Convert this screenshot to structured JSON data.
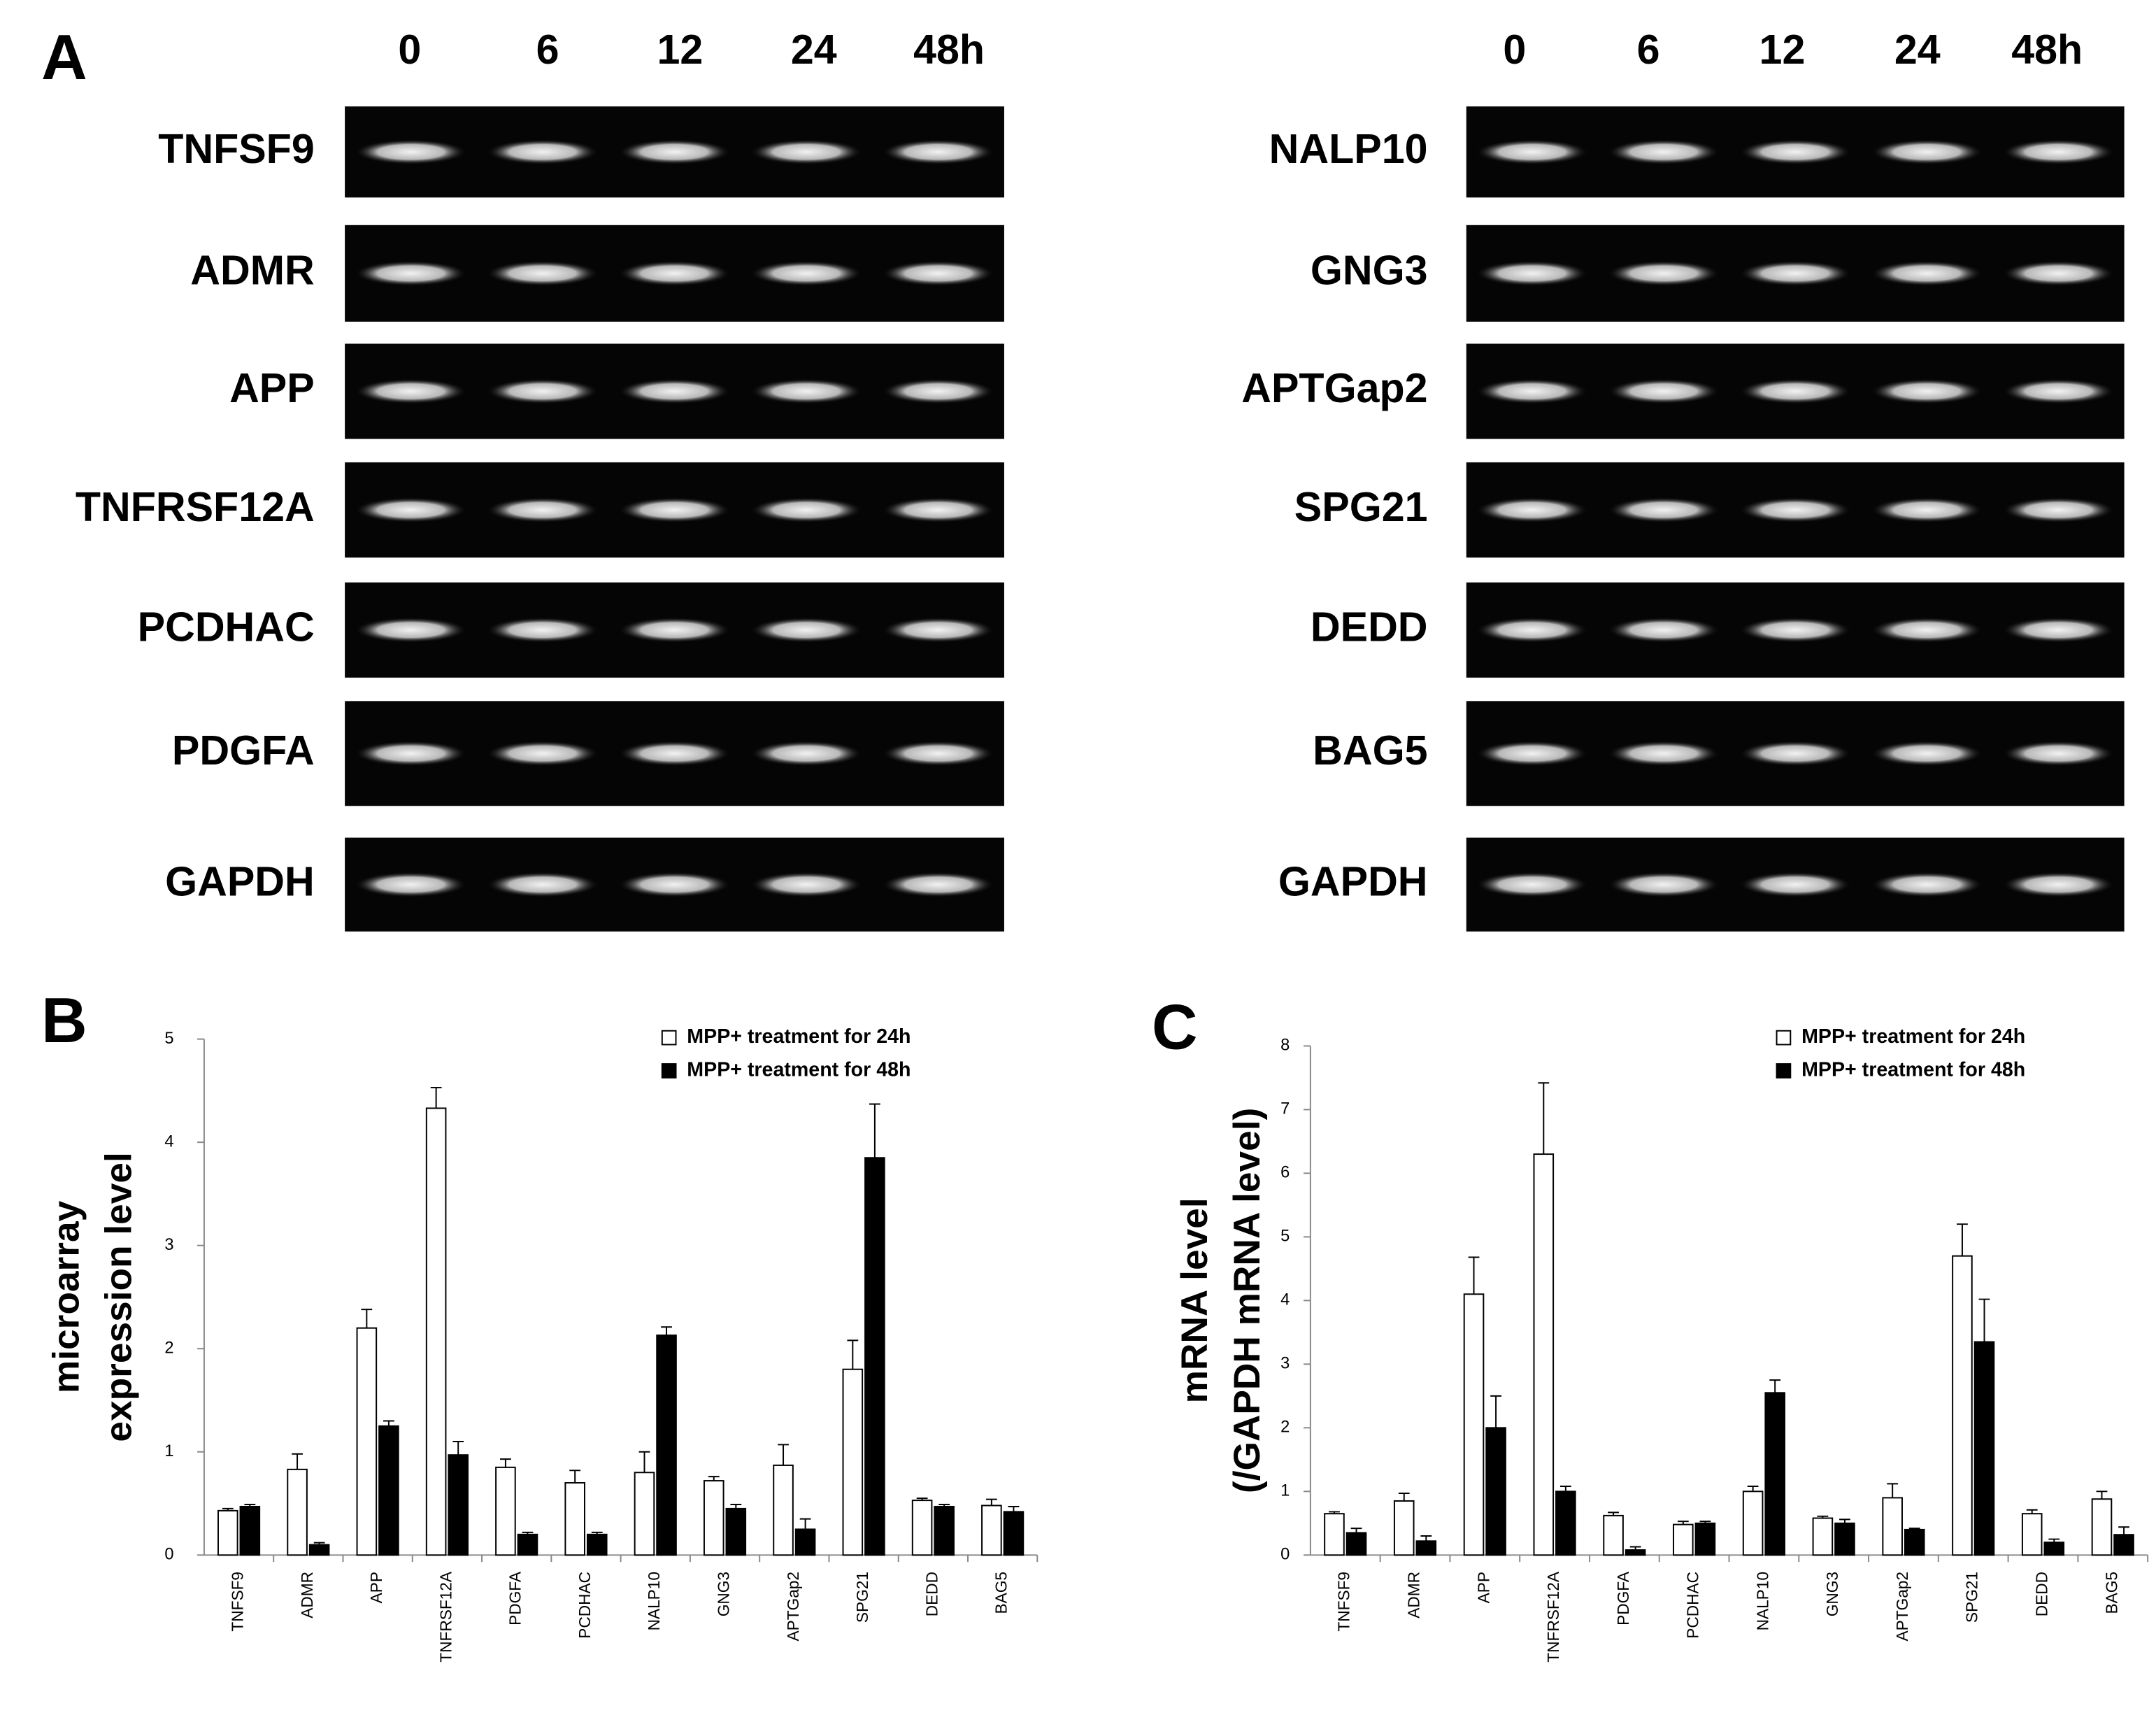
{
  "panel_a": {
    "label": "A",
    "lanes": [
      "0",
      "6",
      "12",
      "24",
      "48h"
    ],
    "gels": [
      {
        "genes": [
          "TNFSF9",
          "ADMR",
          "APP",
          "TNFRSF12A",
          "PCDHAC",
          "PDGFA",
          "GAPDH"
        ]
      },
      {
        "genes": [
          "NALP10",
          "GNG3",
          "APTGap2",
          "SPG21",
          "DEDD",
          "BAG5",
          "GAPDH"
        ]
      }
    ]
  },
  "chart_data": [
    {
      "type": "bar",
      "panel_label": "B",
      "ylabel": [
        "microarray",
        "expression level"
      ],
      "categories": [
        "TNFSF9",
        "ADMR",
        "APP",
        "TNFRSF12A",
        "PDGFA",
        "PCDHAC",
        "NALP10",
        "GNG3",
        "APTGap2",
        "SPG21",
        "DEDD",
        "BAG5"
      ],
      "series": [
        {
          "name": "MPP+ treatment for 24h",
          "color": "#ffffff",
          "values": [
            0.43,
            0.83,
            2.2,
            4.33,
            0.85,
            0.7,
            0.8,
            0.72,
            0.87,
            1.8,
            0.53,
            0.48
          ],
          "errors": [
            0.02,
            0.15,
            0.18,
            0.2,
            0.08,
            0.12,
            0.2,
            0.04,
            0.2,
            0.28,
            0.02,
            0.06
          ]
        },
        {
          "name": "MPP+ treatment for 48h",
          "color": "#000000",
          "values": [
            0.47,
            0.1,
            1.25,
            0.97,
            0.2,
            0.2,
            2.13,
            0.45,
            0.25,
            3.85,
            0.47,
            0.42
          ],
          "errors": [
            0.02,
            0.02,
            0.05,
            0.13,
            0.02,
            0.02,
            0.08,
            0.04,
            0.1,
            0.52,
            0.02,
            0.05
          ]
        }
      ],
      "ylim": [
        0,
        5
      ],
      "yticks": [
        0,
        1,
        2,
        3,
        4,
        5
      ]
    },
    {
      "type": "bar",
      "panel_label": "C",
      "ylabel": [
        "mRNA level",
        "(/GAPDH mRNA level)"
      ],
      "categories": [
        "TNFSF9",
        "ADMR",
        "APP",
        "TNFRSF12A",
        "PDGFA",
        "PCDHAC",
        "NALP10",
        "GNG3",
        "APTGap2",
        "SPG21",
        "DEDD",
        "BAG5"
      ],
      "series": [
        {
          "name": "MPP+ treatment for 24h",
          "color": "#ffffff",
          "values": [
            0.65,
            0.85,
            4.1,
            6.3,
            0.62,
            0.48,
            1.0,
            0.58,
            0.9,
            4.7,
            0.65,
            0.88
          ],
          "errors": [
            0.03,
            0.12,
            0.58,
            1.12,
            0.05,
            0.05,
            0.08,
            0.03,
            0.22,
            0.5,
            0.06,
            0.12
          ]
        },
        {
          "name": "MPP+ treatment for 48h",
          "color": "#000000",
          "values": [
            0.35,
            0.22,
            2.0,
            1.0,
            0.08,
            0.5,
            2.55,
            0.5,
            0.4,
            3.35,
            0.2,
            0.32
          ],
          "errors": [
            0.07,
            0.08,
            0.5,
            0.08,
            0.05,
            0.03,
            0.2,
            0.06,
            0.02,
            0.67,
            0.05,
            0.12
          ]
        }
      ],
      "ylim": [
        0,
        8
      ],
      "yticks": [
        0,
        1,
        2,
        3,
        4,
        5,
        6,
        7,
        8
      ]
    }
  ]
}
